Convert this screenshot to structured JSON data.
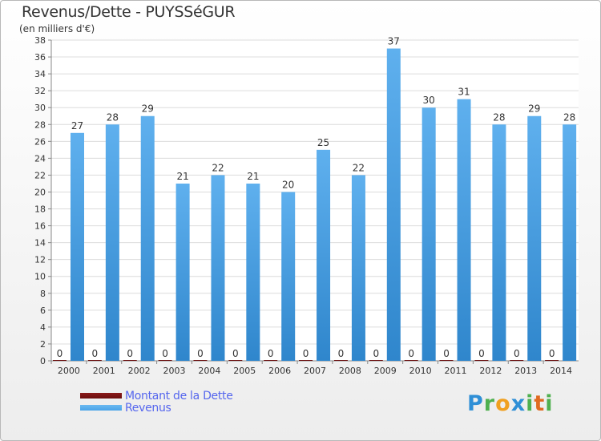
{
  "header": {
    "title": "Revenus/Dette - PUYSSéGUR",
    "subtitle": "(en milliers d'€)"
  },
  "legend": {
    "items": [
      {
        "label": "Montant de la Dette",
        "color": "#6b0e0e"
      },
      {
        "label": "Revenus",
        "color": "#4aa3e8"
      }
    ]
  },
  "logo": {
    "letters": [
      "P",
      "r",
      "o",
      "x",
      "i",
      "t",
      "i"
    ],
    "colors": [
      "#2f8fd6",
      "#4fb04f",
      "#f0a020",
      "#2f8fd6",
      "#4fb04f",
      "#e06a20",
      "#4fb04f"
    ]
  },
  "chart_data": {
    "type": "bar",
    "title": "Revenus/Dette - PUYSSéGUR",
    "subtitle": "(en milliers d'€)",
    "xlabel": "",
    "ylabel": "",
    "categories": [
      "2000",
      "2001",
      "2002",
      "2003",
      "2004",
      "2005",
      "2006",
      "2007",
      "2008",
      "2009",
      "2010",
      "2011",
      "2012",
      "2013",
      "2014"
    ],
    "series": [
      {
        "name": "Montant de la Dette",
        "color": "#6b0e0e",
        "values": [
          0,
          0,
          0,
          0,
          0,
          0,
          0,
          0,
          0,
          0,
          0,
          0,
          0,
          0,
          0
        ]
      },
      {
        "name": "Revenus",
        "color": "#4aa3e8",
        "values": [
          27,
          28,
          29,
          21,
          22,
          21,
          20,
          25,
          22,
          37,
          30,
          31,
          28,
          29,
          28
        ]
      }
    ],
    "ylim": [
      0,
      38
    ],
    "yticks": [
      0,
      2,
      4,
      6,
      8,
      10,
      12,
      14,
      16,
      18,
      20,
      22,
      24,
      26,
      28,
      30,
      32,
      34,
      36,
      38
    ],
    "grid": true,
    "legend_position": "bottom-left"
  }
}
